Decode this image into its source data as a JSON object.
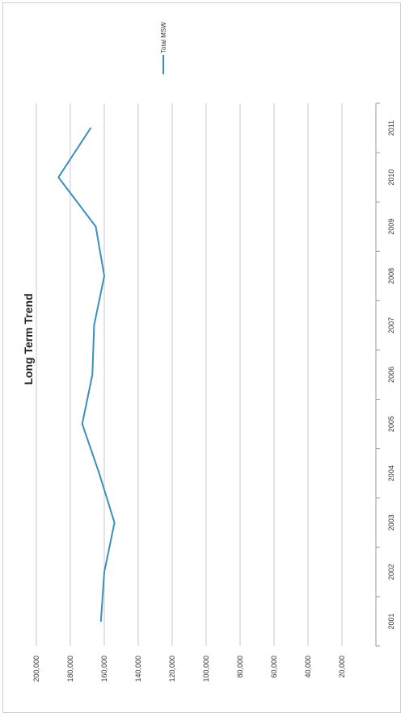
{
  "chart_data": {
    "type": "line",
    "title": "Long Term Trend",
    "categories": [
      "2001",
      "2002",
      "2003",
      "2004",
      "2005",
      "2006",
      "2007",
      "2008",
      "2009",
      "2010",
      "2011"
    ],
    "series": [
      {
        "name": "Total MSW",
        "color": "#3a8fc0",
        "values": [
          162000,
          160000,
          154000,
          163000,
          173000,
          167000,
          166000,
          160000,
          165000,
          187000,
          168000
        ]
      }
    ],
    "ylim": [
      0,
      200000
    ],
    "yticks": [
      0,
      20000,
      40000,
      60000,
      80000,
      100000,
      120000,
      140000,
      160000,
      180000,
      200000
    ],
    "ytick_labels": [
      "",
      "20,000",
      "40,000",
      "60,000",
      "80,000",
      "100,000",
      "120,000",
      "140,000",
      "160,000",
      "180,000",
      "200,000"
    ],
    "grid": true,
    "legend_position": "top-right",
    "orientation": "rotated-90-clockwise"
  }
}
